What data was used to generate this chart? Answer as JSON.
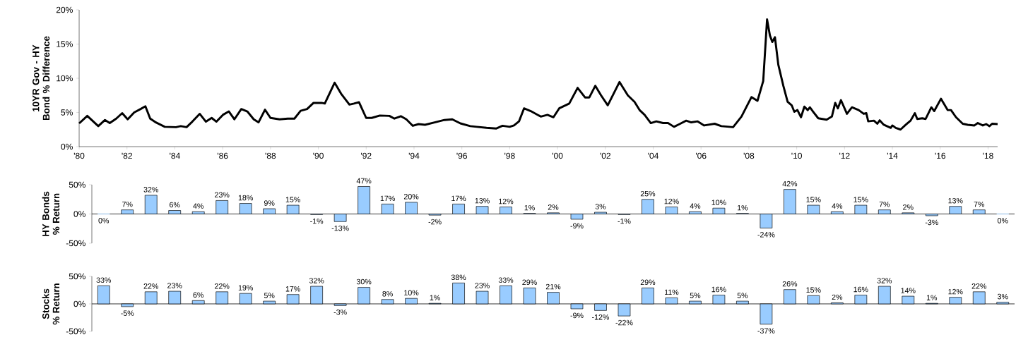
{
  "chart_data": [
    {
      "type": "line",
      "ylabel": "10YR Gov - HY Bond % Difference",
      "color": "#000000",
      "xlim": [
        1980,
        2018.4
      ],
      "ylim": [
        0,
        20
      ],
      "xticks": [
        {
          "value": 1980,
          "label": "'80"
        },
        {
          "value": 1982,
          "label": "'82"
        },
        {
          "value": 1984,
          "label": "'84"
        },
        {
          "value": 1986,
          "label": "'86"
        },
        {
          "value": 1988,
          "label": "'88"
        },
        {
          "value": 1990,
          "label": "'90"
        },
        {
          "value": 1992,
          "label": "'92"
        },
        {
          "value": 1994,
          "label": "'94"
        },
        {
          "value": 1996,
          "label": "'96"
        },
        {
          "value": 1998,
          "label": "'98"
        },
        {
          "value": 2000,
          "label": "'00"
        },
        {
          "value": 2002,
          "label": "'02"
        },
        {
          "value": 2004,
          "label": "'04"
        },
        {
          "value": 2006,
          "label": "'06"
        },
        {
          "value": 2008,
          "label": "'08"
        },
        {
          "value": 2010,
          "label": "'10"
        },
        {
          "value": 2012,
          "label": "'12"
        },
        {
          "value": 2014,
          "label": "'14"
        },
        {
          "value": 2016,
          "label": "'16"
        },
        {
          "value": 2018,
          "label": "'18"
        }
      ],
      "yticks": [
        {
          "value": 0,
          "label": "0%"
        },
        {
          "value": 5,
          "label": "5%"
        },
        {
          "value": 10,
          "label": "10%"
        },
        {
          "value": 15,
          "label": "15%"
        },
        {
          "value": 20,
          "label": "20%"
        }
      ],
      "x": [
        1980.0,
        1980.34,
        1980.8,
        1981.08,
        1981.28,
        1981.55,
        1981.8,
        1982.03,
        1982.3,
        1982.57,
        1982.77,
        1982.97,
        1983.18,
        1983.58,
        1984.05,
        1984.25,
        1984.49,
        1984.73,
        1985.04,
        1985.3,
        1985.54,
        1985.74,
        1986.01,
        1986.26,
        1986.49,
        1986.78,
        1987.03,
        1987.3,
        1987.5,
        1987.77,
        1988.0,
        1988.38,
        1988.72,
        1989.0,
        1989.26,
        1989.53,
        1989.8,
        1990.14,
        1990.27,
        1990.68,
        1990.95,
        1991.3,
        1991.49,
        1991.7,
        1992.0,
        1992.23,
        1992.57,
        1992.97,
        1993.18,
        1993.45,
        1993.68,
        1993.95,
        1994.19,
        1994.46,
        1994.86,
        1995.27,
        1995.6,
        1995.94,
        1996.35,
        1996.62,
        1997.03,
        1997.43,
        1997.7,
        1998.0,
        1998.18,
        1998.39,
        1998.6,
        1998.88,
        1999.3,
        1999.58,
        1999.83,
        2000.07,
        2000.49,
        2000.84,
        2001.15,
        2001.33,
        2001.58,
        2001.82,
        2002.1,
        2002.59,
        2002.94,
        2003.22,
        2003.43,
        2003.64,
        2003.9,
        2004.13,
        2004.41,
        2004.62,
        2004.87,
        2005.1,
        2005.38,
        2005.59,
        2005.85,
        2006.13,
        2006.57,
        2006.85,
        2007.34,
        2007.69,
        2008.11,
        2008.36,
        2008.6,
        2008.76,
        2008.88,
        2008.98,
        2009.09,
        2009.23,
        2009.44,
        2009.62,
        2009.79,
        2009.9,
        2010.03,
        2010.18,
        2010.32,
        2010.46,
        2010.55,
        2010.69,
        2010.9,
        2011.25,
        2011.47,
        2011.61,
        2011.72,
        2011.85,
        2012.1,
        2012.31,
        2012.59,
        2012.8,
        2012.91,
        2012.99,
        2013.23,
        2013.37,
        2013.47,
        2013.64,
        2013.93,
        2014.0,
        2014.14,
        2014.34,
        2014.56,
        2014.76,
        2014.94,
        2015.04,
        2015.25,
        2015.39,
        2015.63,
        2015.75,
        2016.03,
        2016.31,
        2016.45,
        2016.66,
        2016.94,
        2017.15,
        2017.43,
        2017.57,
        2017.78,
        2017.92,
        2018.06,
        2018.17,
        2018.4
      ],
      "values": [
        3.4,
        4.5,
        3.0,
        3.9,
        3.45,
        4.1,
        4.9,
        4.0,
        5.0,
        5.5,
        5.9,
        4.1,
        3.6,
        2.9,
        2.85,
        3.0,
        2.85,
        3.65,
        4.8,
        3.65,
        4.2,
        3.65,
        4.65,
        5.15,
        4.0,
        5.5,
        5.15,
        4.0,
        3.55,
        5.4,
        4.2,
        4.0,
        4.1,
        4.1,
        5.25,
        5.5,
        6.4,
        6.4,
        6.3,
        9.35,
        7.75,
        6.15,
        6.3,
        6.5,
        4.2,
        4.2,
        4.55,
        4.5,
        4.1,
        4.45,
        4.0,
        3.05,
        3.3,
        3.2,
        3.55,
        3.9,
        4.0,
        3.4,
        3.0,
        2.9,
        2.75,
        2.65,
        3.05,
        2.9,
        3.1,
        3.7,
        5.6,
        5.2,
        4.4,
        4.65,
        4.3,
        5.6,
        6.3,
        8.6,
        7.2,
        7.2,
        8.9,
        7.5,
        6.05,
        9.45,
        7.5,
        6.55,
        5.35,
        4.65,
        3.45,
        3.7,
        3.45,
        3.45,
        2.9,
        3.3,
        3.8,
        3.55,
        3.7,
        3.1,
        3.35,
        3.0,
        2.85,
        4.4,
        7.25,
        6.7,
        9.6,
        18.6,
        16.25,
        15.3,
        16.0,
        12.0,
        8.9,
        6.55,
        6.05,
        5.1,
        5.35,
        4.3,
        5.85,
        5.35,
        5.75,
        5.1,
        4.15,
        3.95,
        4.4,
        6.4,
        5.6,
        6.8,
        4.8,
        5.75,
        5.35,
        4.8,
        4.9,
        3.7,
        3.8,
        3.35,
        3.85,
        3.2,
        2.75,
        3.1,
        2.75,
        2.5,
        3.2,
        3.8,
        4.9,
        4.05,
        4.15,
        4.05,
        5.75,
        5.2,
        7.0,
        5.35,
        5.35,
        4.3,
        3.35,
        3.2,
        3.1,
        3.45,
        3.1,
        3.3,
        3.0,
        3.35,
        3.3
      ]
    },
    {
      "type": "bar",
      "ylabel": "HY Bonds % Return",
      "color": "#99ccff",
      "ylim": [
        -50,
        50
      ],
      "tick_labels": "y",
      "yticks": [
        {
          "value": -50,
          "label": "-50%"
        },
        {
          "value": 0,
          "label": "0%"
        },
        {
          "value": 50,
          "label": "50%"
        }
      ],
      "categories": [
        null,
        null,
        null,
        null,
        null,
        null,
        null,
        null,
        null,
        null,
        null,
        null,
        null,
        null,
        null,
        null,
        null,
        null,
        null,
        null,
        null,
        null,
        null,
        null,
        null,
        null,
        null,
        null,
        null,
        null,
        null,
        null,
        null,
        null,
        null,
        null,
        null,
        null,
        null
      ],
      "values": [
        0,
        7,
        32,
        6,
        4,
        23,
        18,
        9,
        15,
        -1,
        -13,
        47,
        17,
        20,
        -2,
        17,
        13,
        12,
        1,
        2,
        -9,
        3,
        -1,
        25,
        12,
        4,
        10,
        1,
        -24,
        42,
        15,
        4,
        15,
        7,
        2,
        -3,
        13,
        7,
        0
      ],
      "value_labels": [
        "0%",
        "7%",
        "32%",
        "6%",
        "4%",
        "23%",
        "18%",
        "9%",
        "15%",
        "-1%",
        "-13%",
        "47%",
        "17%",
        "20%",
        "-2%",
        "17%",
        "13%",
        "12%",
        "1%",
        "2%",
        "-9%",
        "3%",
        "-1%",
        "25%",
        "12%",
        "4%",
        "10%",
        "1%",
        "-24%",
        "42%",
        "15%",
        "4%",
        "15%",
        "7%",
        "2%",
        "-3%",
        "13%",
        "7%",
        "0%"
      ]
    },
    {
      "type": "bar",
      "ylabel": "Stocks % Return",
      "color": "#99ccff",
      "ylim": [
        -50,
        50
      ],
      "tick_labels": "y",
      "yticks": [
        {
          "value": -50,
          "label": "-50%"
        },
        {
          "value": 0,
          "label": "0%"
        },
        {
          "value": 50,
          "label": "50%"
        }
      ],
      "categories": [
        null,
        null,
        null,
        null,
        null,
        null,
        null,
        null,
        null,
        null,
        null,
        null,
        null,
        null,
        null,
        null,
        null,
        null,
        null,
        null,
        null,
        null,
        null,
        null,
        null,
        null,
        null,
        null,
        null,
        null,
        null,
        null,
        null,
        null,
        null,
        null,
        null,
        null,
        null
      ],
      "values": [
        33,
        -5,
        22,
        23,
        6,
        22,
        19,
        5,
        17,
        32,
        -3,
        30,
        8,
        10,
        1,
        38,
        23,
        33,
        29,
        21,
        -9,
        -12,
        -22,
        29,
        11,
        5,
        16,
        5,
        -37,
        26,
        15,
        2,
        16,
        32,
        14,
        1,
        12,
        22,
        3
      ],
      "value_labels": [
        "33%",
        "-5%",
        "22%",
        "23%",
        "6%",
        "22%",
        "19%",
        "5%",
        "17%",
        "32%",
        "-3%",
        "30%",
        "8%",
        "10%",
        "1%",
        "38%",
        "23%",
        "33%",
        "29%",
        "21%",
        "-9%",
        "-12%",
        "-22%",
        "29%",
        "11%",
        "5%",
        "16%",
        "5%",
        "-37%",
        "26%",
        "15%",
        "2%",
        "16%",
        "32%",
        "14%",
        "1%",
        "12%",
        "22%",
        "3%"
      ]
    }
  ]
}
